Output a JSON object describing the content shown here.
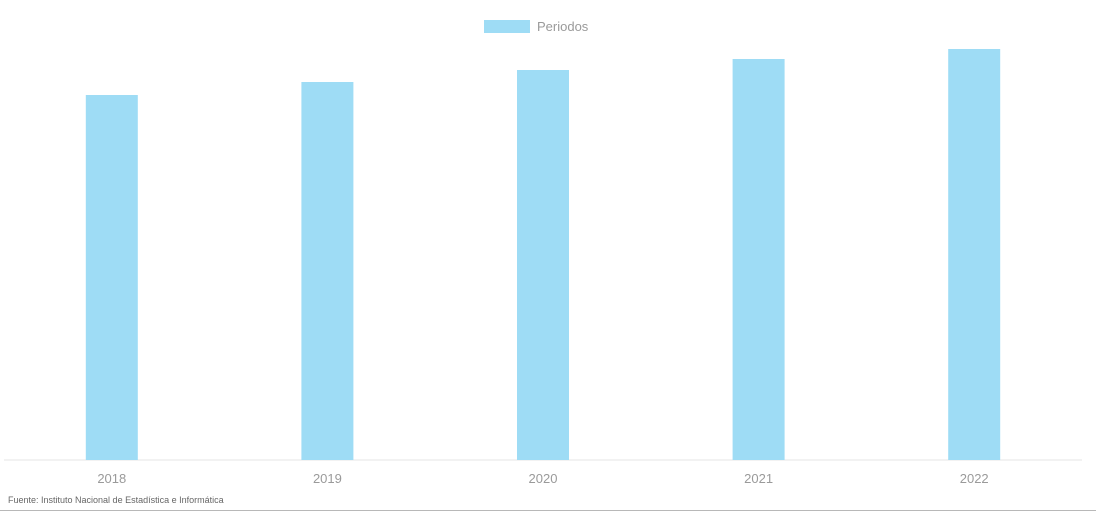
{
  "chart_data": {
    "type": "bar",
    "categories": [
      "2018",
      "2019",
      "2020",
      "2021",
      "2022"
    ],
    "series": [
      {
        "name": "Periodos",
        "values": [
          365,
          378,
          390,
          401,
          411
        ]
      }
    ],
    "title": "",
    "xlabel": "",
    "ylabel": "",
    "ylim": [
      0,
      445
    ],
    "grid": false,
    "legend_position": "top-center",
    "colors": {
      "bar": "#9edcf5",
      "axis": "#e6e6e6",
      "text": "#9a9a9a"
    }
  },
  "source_note": "Fuente: Instituto Nacional de Estadística e Informática"
}
